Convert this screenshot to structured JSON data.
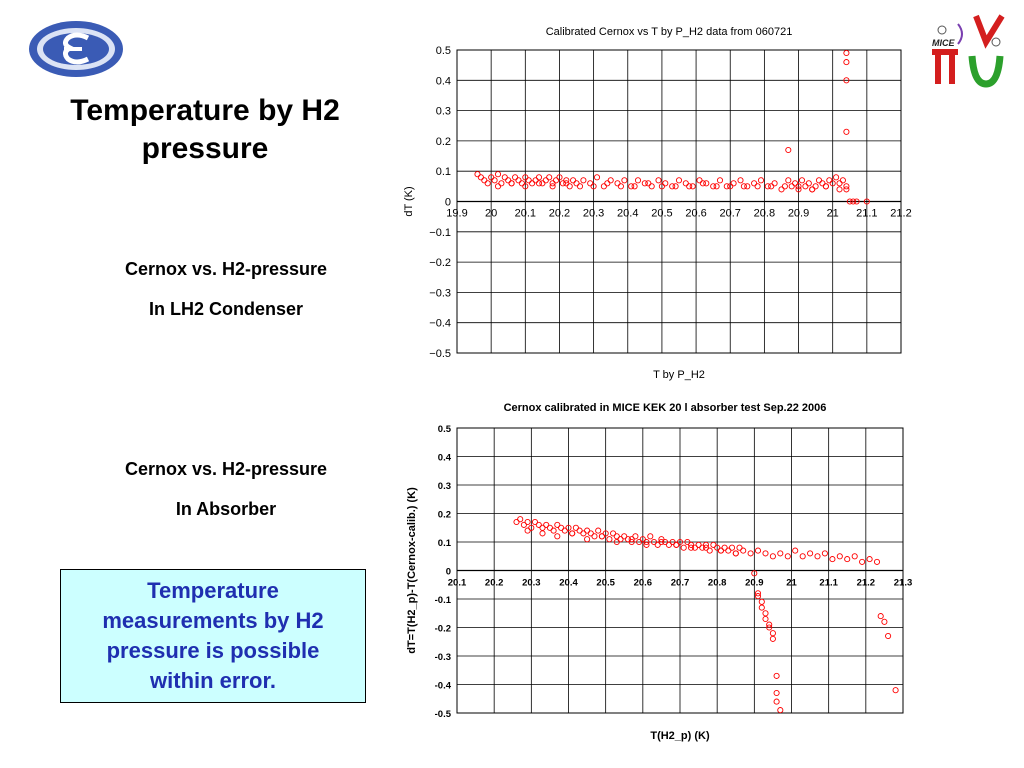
{
  "slide": {
    "title": "Temperature by H2 pressure",
    "caption1_line1": "Cernox vs. H2-pressure",
    "caption1_line2": "In LH2 Condenser",
    "caption2_line1": "Cernox vs. H2-pressure",
    "caption2_line2": "In Absorber",
    "note": "Temperature measurements by H2 pressure is possible within error.",
    "right_logo_text": "MICE",
    "colors": {
      "note_bg": "#ccffff",
      "note_text": "#1f2fb0",
      "marker": "#ff0000",
      "logo_blue": "#3a5bb5"
    }
  },
  "chart_data": [
    {
      "type": "scatter",
      "title": "Calibrated Cernox vs T by P_H2  data from 060721",
      "xlabel": "T by P_H2",
      "ylabel": "dT (K)",
      "xlim": [
        19.9,
        21.2
      ],
      "ylim": [
        -0.5,
        0.5
      ],
      "xticks": [
        "19.9",
        "20",
        "20.1",
        "20.2",
        "20.3",
        "20.4",
        "20.5",
        "20.6",
        "20.7",
        "20.8",
        "20.9",
        "21",
        "21.1",
        "21.2"
      ],
      "yticks": [
        "0.5",
        "0.4",
        "0.3",
        "0.2",
        "0.1",
        "0",
        "−0.1",
        "−0.2",
        "−0.3",
        "−0.4",
        "−0.5"
      ],
      "grid": true,
      "x": [
        19.96,
        19.97,
        19.98,
        19.99,
        20.0,
        20.01,
        20.02,
        20.03,
        20.04,
        20.05,
        20.06,
        20.07,
        20.08,
        20.09,
        20.1,
        20.11,
        20.12,
        20.13,
        20.14,
        20.15,
        20.16,
        20.17,
        20.18,
        20.19,
        20.2,
        20.21,
        20.22,
        20.23,
        20.24,
        20.25,
        20.27,
        20.29,
        20.31,
        20.33,
        20.35,
        20.37,
        20.39,
        20.41,
        20.43,
        20.45,
        20.47,
        20.49,
        20.51,
        20.53,
        20.55,
        20.57,
        20.59,
        20.61,
        20.63,
        20.65,
        20.67,
        20.69,
        20.71,
        20.73,
        20.75,
        20.77,
        20.79,
        20.81,
        20.83,
        20.85,
        20.87,
        20.88,
        20.89,
        20.9,
        20.91,
        20.92,
        20.93,
        20.94,
        20.95,
        20.96,
        20.97,
        20.98,
        20.99,
        21.0,
        21.01,
        21.02,
        21.03,
        21.04,
        20.02,
        20.06,
        20.1,
        20.14,
        20.18,
        20.22,
        20.26,
        20.3,
        20.34,
        20.38,
        20.42,
        20.46,
        20.5,
        20.54,
        20.58,
        20.62,
        20.66,
        20.7,
        20.74,
        20.78,
        20.82,
        20.86,
        20.9,
        20.94,
        20.98,
        21.02,
        20.87,
        21.04,
        21.04,
        21.04,
        21.04,
        21.04,
        21.05,
        21.06,
        21.07,
        21.1
      ],
      "y": [
        0.09,
        0.08,
        0.07,
        0.06,
        0.08,
        0.07,
        0.09,
        0.06,
        0.08,
        0.07,
        0.06,
        0.08,
        0.07,
        0.06,
        0.08,
        0.07,
        0.06,
        0.07,
        0.08,
        0.06,
        0.07,
        0.08,
        0.06,
        0.07,
        0.08,
        0.06,
        0.07,
        0.05,
        0.07,
        0.06,
        0.07,
        0.06,
        0.08,
        0.05,
        0.07,
        0.06,
        0.07,
        0.05,
        0.07,
        0.06,
        0.05,
        0.07,
        0.06,
        0.05,
        0.07,
        0.06,
        0.05,
        0.07,
        0.06,
        0.05,
        0.07,
        0.05,
        0.06,
        0.07,
        0.05,
        0.06,
        0.07,
        0.05,
        0.06,
        0.04,
        0.07,
        0.05,
        0.06,
        0.04,
        0.07,
        0.05,
        0.06,
        0.04,
        0.05,
        0.07,
        0.06,
        0.05,
        0.07,
        0.06,
        0.08,
        0.06,
        0.07,
        0.05,
        0.05,
        0.06,
        0.05,
        0.06,
        0.05,
        0.06,
        0.05,
        0.05,
        0.06,
        0.05,
        0.05,
        0.06,
        0.05,
        0.05,
        0.05,
        0.06,
        0.05,
        0.05,
        0.05,
        0.05,
        0.05,
        0.05,
        0.05,
        0.04,
        0.05,
        0.04,
        0.17,
        0.49,
        0.46,
        0.4,
        0.23,
        0.04,
        0.0,
        0.0,
        0.0,
        0.0
      ]
    },
    {
      "type": "scatter",
      "title": "Cernox calibrated in MICE KEK 20 l absorber test  Sep.22 2006",
      "xlabel": "T(H2_p) (K)",
      "ylabel": "dT=T(H2_p)-T(Cernox-calib.) (K)",
      "xlim": [
        20.1,
        21.3
      ],
      "ylim": [
        -0.5,
        0.5
      ],
      "xticks": [
        "20.1",
        "20.2",
        "20.3",
        "20.4",
        "20.5",
        "20.6",
        "20.7",
        "20.8",
        "20.9",
        "21",
        "21.1",
        "21.2",
        "21.3"
      ],
      "yticks": [
        "0.5",
        "0.4",
        "0.3",
        "0.2",
        "0.1",
        "0",
        "-0.1",
        "-0.2",
        "-0.3",
        "-0.4",
        "-0.5"
      ],
      "grid": true,
      "x": [
        20.26,
        20.27,
        20.28,
        20.29,
        20.3,
        20.31,
        20.32,
        20.33,
        20.34,
        20.35,
        20.36,
        20.37,
        20.38,
        20.39,
        20.4,
        20.41,
        20.42,
        20.43,
        20.44,
        20.45,
        20.46,
        20.47,
        20.48,
        20.49,
        20.5,
        20.51,
        20.52,
        20.53,
        20.54,
        20.55,
        20.56,
        20.57,
        20.58,
        20.59,
        20.6,
        20.61,
        20.62,
        20.63,
        20.64,
        20.65,
        20.66,
        20.67,
        20.68,
        20.69,
        20.7,
        20.71,
        20.72,
        20.73,
        20.74,
        20.75,
        20.76,
        20.77,
        20.78,
        20.79,
        20.8,
        20.81,
        20.82,
        20.83,
        20.84,
        20.85,
        20.86,
        20.87,
        20.89,
        20.91,
        20.93,
        20.95,
        20.97,
        20.99,
        21.01,
        21.03,
        21.05,
        21.07,
        21.09,
        21.11,
        21.13,
        21.15,
        21.17,
        21.19,
        21.21,
        21.23,
        20.29,
        20.33,
        20.37,
        20.41,
        20.45,
        20.49,
        20.53,
        20.57,
        20.61,
        20.65,
        20.69,
        20.73,
        20.77,
        20.81,
        20.85,
        20.9,
        20.91,
        20.91,
        20.92,
        20.92,
        20.93,
        20.93,
        20.94,
        20.94,
        20.95,
        20.95,
        20.96,
        20.96,
        20.96,
        20.97,
        21.24,
        21.25,
        21.26,
        21.28
      ],
      "y": [
        0.17,
        0.18,
        0.16,
        0.17,
        0.15,
        0.17,
        0.16,
        0.15,
        0.16,
        0.15,
        0.14,
        0.16,
        0.15,
        0.14,
        0.15,
        0.13,
        0.15,
        0.14,
        0.13,
        0.14,
        0.13,
        0.12,
        0.14,
        0.12,
        0.13,
        0.11,
        0.13,
        0.12,
        0.11,
        0.12,
        0.11,
        0.1,
        0.12,
        0.1,
        0.11,
        0.1,
        0.12,
        0.1,
        0.09,
        0.11,
        0.1,
        0.09,
        0.1,
        0.09,
        0.1,
        0.08,
        0.1,
        0.09,
        0.08,
        0.09,
        0.08,
        0.09,
        0.07,
        0.09,
        0.08,
        0.07,
        0.08,
        0.07,
        0.08,
        0.06,
        0.08,
        0.07,
        0.06,
        0.07,
        0.06,
        0.05,
        0.06,
        0.05,
        0.07,
        0.05,
        0.06,
        0.05,
        0.06,
        0.04,
        0.05,
        0.04,
        0.05,
        0.03,
        0.04,
        0.03,
        0.14,
        0.13,
        0.12,
        0.13,
        0.11,
        0.12,
        0.1,
        0.11,
        0.09,
        0.1,
        0.09,
        0.08,
        0.08,
        0.07,
        0.06,
        -0.01,
        -0.08,
        -0.09,
        -0.11,
        -0.13,
        -0.15,
        -0.17,
        -0.19,
        -0.2,
        -0.22,
        -0.24,
        -0.37,
        -0.43,
        -0.46,
        -0.49,
        -0.16,
        -0.18,
        -0.23,
        -0.42
      ]
    }
  ]
}
